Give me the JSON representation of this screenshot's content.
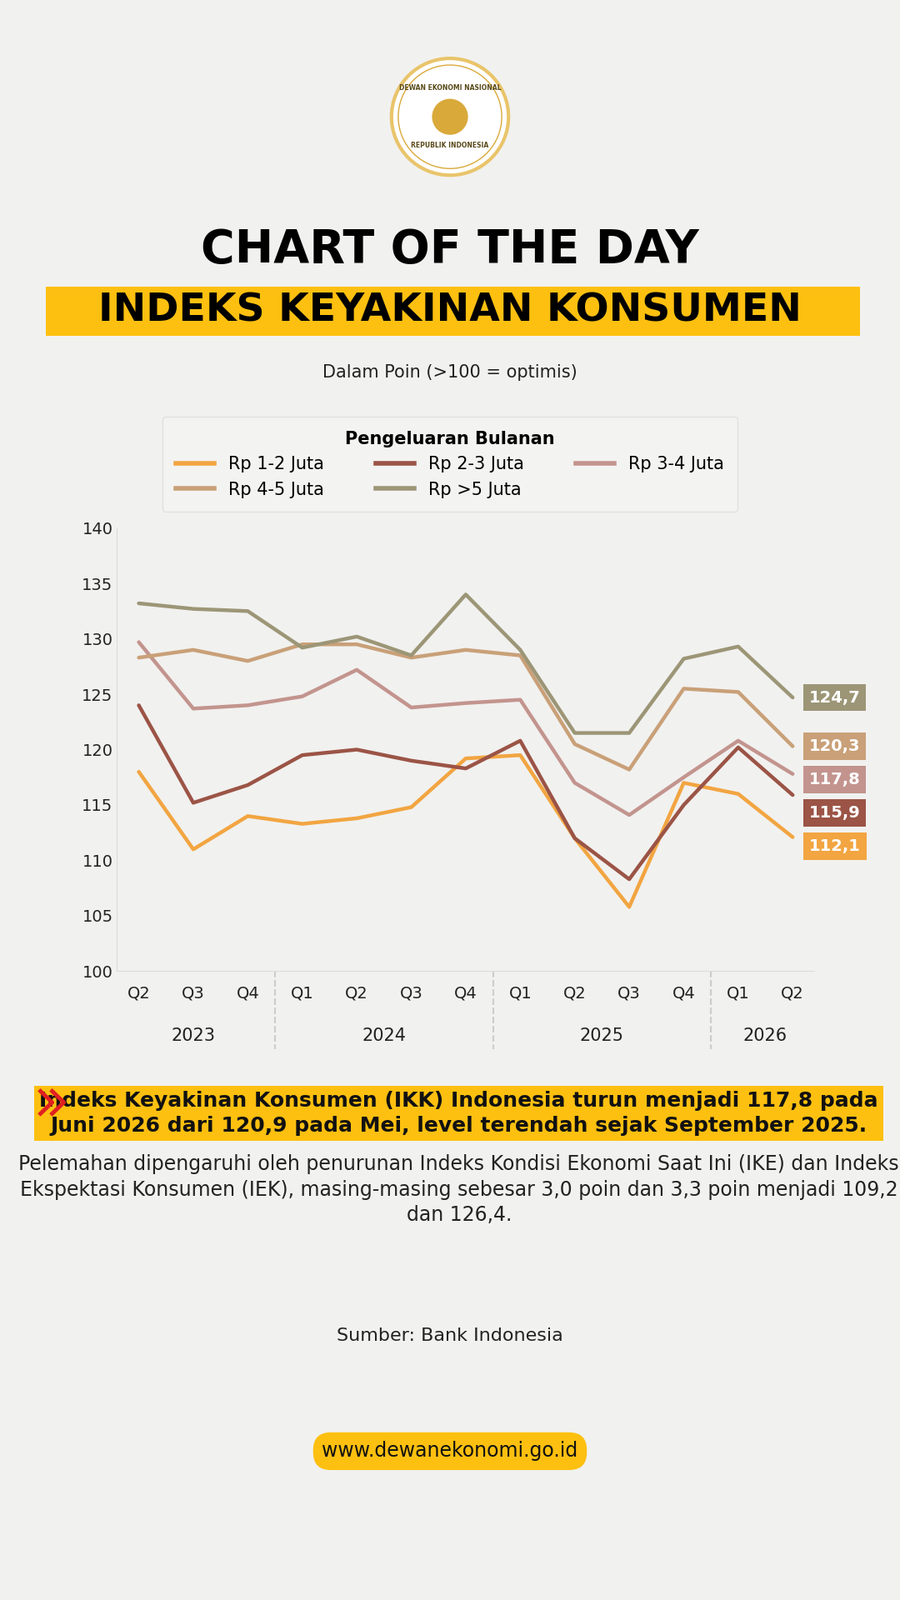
{
  "header": {
    "logo_top": "DEWAN EKONOMI NASIONAL",
    "logo_bottom": "REPUBLIK INDONESIA",
    "title": "CHART OF THE DAY",
    "banner": "INDEKS KEYAKINAN KONSUMEN"
  },
  "chart_data": {
    "type": "line",
    "subtitle": "Dalam Poin (>100 = optimis)",
    "legend_title": "Pengeluaran Bulanan",
    "legend": "upper center",
    "categories": [
      "Q2",
      "Q3",
      "Q4",
      "Q1",
      "Q2",
      "Q3",
      "Q4",
      "Q1",
      "Q2",
      "Q3",
      "Q4",
      "Q1",
      "Q2"
    ],
    "years": [
      "2023",
      "2023",
      "2023",
      "2024",
      "2024",
      "2024",
      "2024",
      "2025",
      "2025",
      "2025",
      "2025",
      "2026",
      "2026"
    ],
    "ylim": [
      100,
      140
    ],
    "yticks": [
      100,
      105,
      110,
      115,
      120,
      125,
      130,
      135,
      140
    ],
    "grid": false,
    "data_labels": true,
    "line_style": "solid",
    "series": [
      {
        "name": "Rp 1-2 Juta",
        "color": "#f2a541",
        "values": [
          118.0,
          111.0,
          114.0,
          113.3,
          113.8,
          114.8,
          119.2,
          119.5,
          112.0,
          105.8,
          117.0,
          116.0,
          112.1
        ],
        "value_labels": [
          null,
          null,
          null,
          null,
          null,
          null,
          null,
          null,
          null,
          null,
          null,
          null,
          "112,1"
        ]
      },
      {
        "name": "Rp 2-3 Juta",
        "color": "#9b5446",
        "values": [
          124.0,
          115.2,
          116.8,
          119.5,
          120.0,
          119.0,
          118.3,
          120.8,
          112.0,
          108.3,
          115.0,
          120.2,
          115.9
        ],
        "value_labels": [
          null,
          null,
          null,
          null,
          null,
          null,
          null,
          null,
          null,
          null,
          null,
          null,
          "115,9"
        ]
      },
      {
        "name": "Rp 3-4 Juta",
        "color": "#c3948e",
        "values": [
          129.7,
          123.7,
          124.0,
          124.8,
          127.2,
          123.8,
          124.2,
          124.5,
          117.0,
          114.1,
          117.5,
          120.8,
          117.8
        ],
        "value_labels": [
          null,
          null,
          null,
          null,
          null,
          null,
          null,
          null,
          null,
          null,
          null,
          null,
          "117,8"
        ]
      },
      {
        "name": "Rp 4-5 Juta",
        "color": "#c9a078",
        "values": [
          128.3,
          129.0,
          128.0,
          129.5,
          129.5,
          128.3,
          129.0,
          128.5,
          120.5,
          118.2,
          125.5,
          125.2,
          120.3
        ],
        "value_labels": [
          null,
          null,
          null,
          null,
          null,
          null,
          null,
          null,
          null,
          null,
          null,
          null,
          "120,3"
        ]
      },
      {
        "name": "Rp >5 Juta",
        "color": "#9c9677",
        "values": [
          133.2,
          132.7,
          132.5,
          129.2,
          130.2,
          128.5,
          134.0,
          129.0,
          121.5,
          121.5,
          128.2,
          129.3,
          124.7
        ],
        "value_labels": [
          null,
          null,
          null,
          null,
          null,
          null,
          null,
          null,
          null,
          null,
          null,
          null,
          "124,7"
        ]
      }
    ]
  },
  "footer": {
    "highlight": "Indeks Keyakinan Konsumen (IKK) Indonesia turun menjadi 117,8 pada Juni 2026 dari 120,9 pada Mei, level terendah sejak September 2025.",
    "text": "Pelemahan dipengaruhi oleh penurunan Indeks Kondisi Ekonomi Saat Ini (IKE) dan Indeks Ekspektasi Konsumen (IEK), masing-masing sebesar 3,0 poin dan 3,3 poin menjadi 109,2 dan 126,4.",
    "source": "Sumber: Bank Indonesia",
    "url": "www.dewanekonomi.go.id"
  }
}
